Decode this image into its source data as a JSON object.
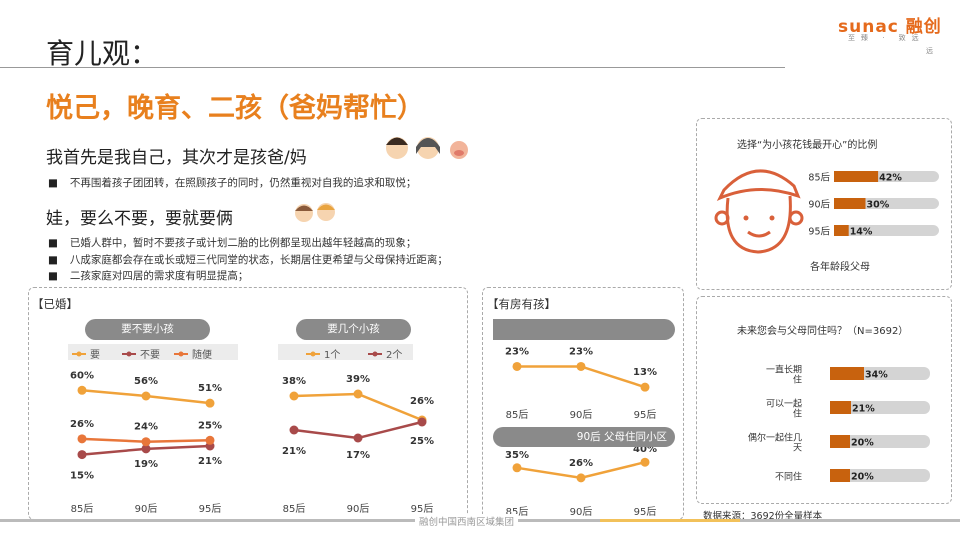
{
  "page": {
    "title": "育儿观：",
    "logo": "sunac 融创",
    "logo_sub": "至臻 · 致远",
    "logo_tag": "远",
    "headline": "悦己，晚育、二孩（爸妈帮忙）",
    "sub1": "我首先是我自己，其次才是孩爸/妈",
    "bullet1": "不再围着孩子团团转，在照顾孩子的同时，仍然重视对自我的追求和取悦；",
    "sub2": "娃，要么不要，要就要俩",
    "bullets2": [
      "已婚人群中，暂时不要孩子或计划二胎的比例都呈现出越年轻越高的现象；",
      "八成家庭都会存在或长或短三代同堂的状态，长期居住更希望与父母保持近距离；",
      "二孩家庭对四居的需求度有明显提高；"
    ],
    "footer": "融创中国西南区域集团",
    "source_note": "数据来源：3692份全量样本"
  },
  "colors": {
    "orange": "#f0a23a",
    "red": "#a84a4a",
    "orangeRed": "#e8763a",
    "barOrange": "#c8620e",
    "barGray": "#d4d4d4"
  },
  "chart_data": [
    {
      "type": "line",
      "panel": "【已婚】",
      "title": "要不要小孩",
      "categories": [
        "85后",
        "90后",
        "95后"
      ],
      "ylim": [
        0,
        70
      ],
      "series": [
        {
          "name": "要",
          "values": [
            60,
            56,
            51
          ],
          "labels": [
            "60%",
            "56%",
            "51%"
          ],
          "color": "#f0a23a"
        },
        {
          "name": "不要",
          "values": [
            15,
            19,
            21
          ],
          "labels": [
            "15%",
            "19%",
            "21%"
          ],
          "color": "#a84a4a"
        },
        {
          "name": "随便",
          "values": [
            26,
            24,
            25
          ],
          "labels": [
            "26%",
            "24%",
            "25%"
          ],
          "color": "#e8763a"
        }
      ]
    },
    {
      "type": "line",
      "title": "要几个小孩",
      "categories": [
        "85后",
        "90后",
        "95后"
      ],
      "ylim": [
        0,
        45
      ],
      "series": [
        {
          "name": "1个",
          "values": [
            38,
            39,
            26
          ],
          "labels": [
            "38%",
            "39%",
            "26%"
          ],
          "color": "#f0a23a"
        },
        {
          "name": "2个",
          "values": [
            21,
            17,
            25
          ],
          "labels": [
            "21%",
            "17%",
            "25%"
          ],
          "color": "#a84a4a"
        }
      ]
    },
    {
      "type": "line",
      "panel": "【有房有孩】",
      "title": "",
      "categories": [
        "85后",
        "90后",
        "95后"
      ],
      "ylim": [
        0,
        30
      ],
      "series": [
        {
          "values": [
            23,
            23,
            13
          ],
          "labels": [
            "23%",
            "23%",
            "13%"
          ],
          "color": "#f0a23a"
        }
      ]
    },
    {
      "type": "line",
      "title": "90后 父母住同小区",
      "categories": [
        "85后",
        "90后",
        "95后"
      ],
      "ylim": [
        0,
        50
      ],
      "series": [
        {
          "values": [
            35,
            26,
            40
          ],
          "labels": [
            "35%",
            "26%",
            "40%"
          ],
          "color": "#f0a23a"
        }
      ]
    },
    {
      "type": "bar",
      "title": "选择“为小孩花钱最开心”的比例",
      "caption": "各年龄段父母",
      "categories": [
        "85后",
        "90后",
        "95后"
      ],
      "values": [
        42,
        30,
        14
      ],
      "labels": [
        "42%",
        "30%",
        "14%"
      ],
      "xlim": [
        0,
        100
      ]
    },
    {
      "type": "bar",
      "title": "未来您会与父母同住吗？（N=3692）",
      "categories": [
        "一直长期住",
        "可以一起住",
        "偶尔一起住几天",
        "不同住"
      ],
      "values": [
        34,
        21,
        20,
        20
      ],
      "labels": [
        "34%",
        "21%",
        "20%",
        "20%"
      ],
      "xlim": [
        0,
        100
      ]
    }
  ]
}
